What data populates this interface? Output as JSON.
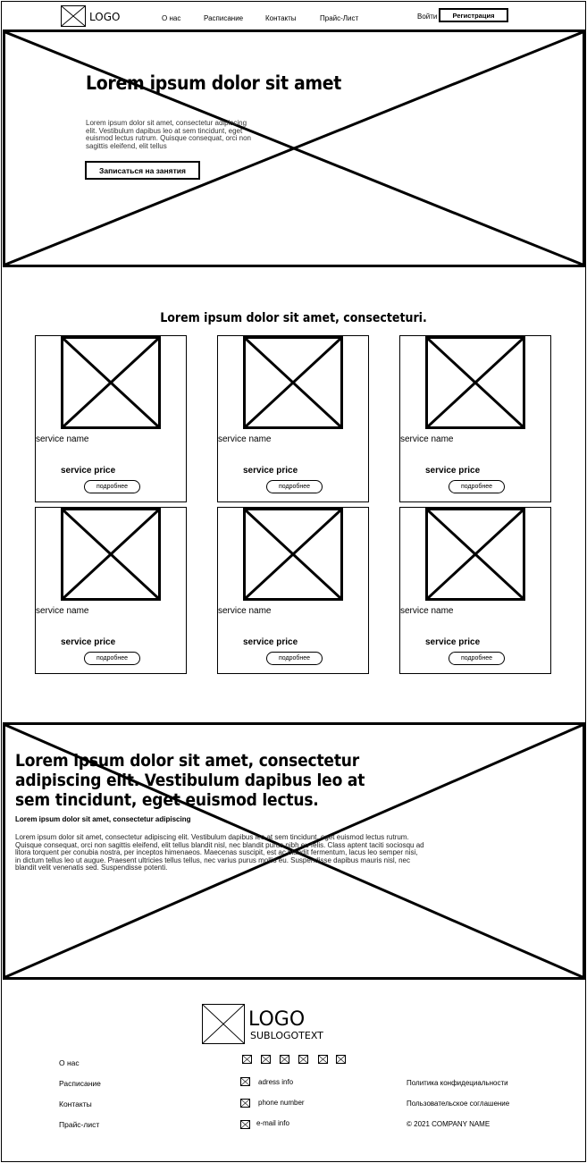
{
  "header": {
    "logo_text": "LOGO",
    "nav": [
      "О нас",
      "Расписание",
      "Контакты",
      "Прайс-Лист"
    ],
    "login_label": "Войти",
    "register_label": "Регистрация"
  },
  "hero": {
    "title": "Lorem ipsum dolor sit amet",
    "text": "Lorem ipsum dolor sit amet, consectetur adipiscing elit. Vestibulum dapibus leo at sem tincidunt, eget euismod lectus rutrum. Quisque consequat, orci non sagittis eleifend, elit tellus",
    "cta_label": "Записаться на занятия"
  },
  "services": {
    "title": "Lorem ipsum dolor sit amet, consecteturi.",
    "items": [
      {
        "name": "service name",
        "price": "service price",
        "more": "подробнее"
      },
      {
        "name": "service name",
        "price": "service price",
        "more": "подробнее"
      },
      {
        "name": "service name",
        "price": "service price",
        "more": "подробнее"
      },
      {
        "name": "service name",
        "price": "service price",
        "more": "подробнее"
      },
      {
        "name": "service name",
        "price": "service price",
        "more": "подробнее"
      },
      {
        "name": "service name",
        "price": "service price",
        "more": "подробнее"
      }
    ]
  },
  "about": {
    "title": "Lorem ipsum dolor sit amet, consectetur adipiscing elit. Vestibulum dapibus leo at sem tincidunt, eget euismod lectus.",
    "subtitle": "Lorem ipsum dolor sit amet, consectetur adipiscing",
    "text": "Lorem ipsum dolor sit amet, consectetur adipiscing elit. Vestibulum dapibus leo at sem tincidunt, eget euismod lectus rutrum. Quisque consequat, orci non sagittis eleifend, elit tellus blandit nisl, nec blandit purus nibh eu felis. Class aptent taciti sociosqu ad litora torquent per conubia nostra, per inceptos himenaeos. Maecenas suscipit, est ac blandit fermentum, lacus leo semper nisi, in dictum tellus leo ut augue. Praesent ultricies tellus tellus, nec varius purus mollis eu. Suspendisse dapibus mauris nisl, nec blandit velit venenatis sed. Suspendisse potenti."
  },
  "footer": {
    "logo_text": "LOGO",
    "sublogo_text": "SUBLOGOTEXT",
    "nav": [
      "О нас",
      "Расписание",
      "Контакты",
      "Прайс-лист"
    ],
    "contacts": [
      "adress info",
      "phone number",
      "e-mail info"
    ],
    "legal": [
      "Политика конфидециальности",
      "Пользовательское соглашение",
      "© 2021 COMPANY NAME"
    ]
  }
}
